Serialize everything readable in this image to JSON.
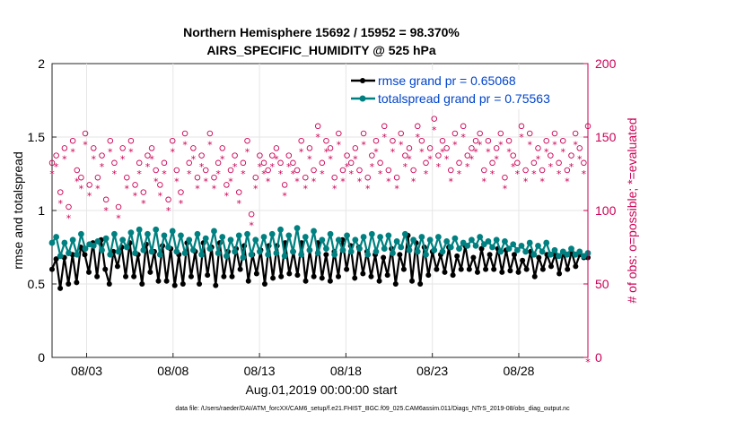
{
  "chart_data": {
    "type": "line",
    "title_line1": "Northern Hemisphere 15692 / 15952 = 98.370%",
    "title_line2": "AIRS_SPECIFIC_HUMIDITY @ 525 hPa",
    "xlabel": "Aug.01,2019 00:00:00 start",
    "ylabel_left": "rmse and totalspread",
    "ylabel_right": "# of obs: o=possible; *=evaluated",
    "ylim_left": [
      0,
      2
    ],
    "ylim_right": [
      0,
      200
    ],
    "xlim_days": [
      0,
      31
    ],
    "left_ticks": [
      "0",
      "0.5",
      "1",
      "1.5",
      "2"
    ],
    "right_ticks": [
      "0",
      "50",
      "100",
      "150",
      "200"
    ],
    "x_tick_labels": [
      "08/03",
      "08/08",
      "08/13",
      "08/18",
      "08/23",
      "08/28"
    ],
    "x_tick_days": [
      2,
      7,
      12,
      17,
      22,
      27
    ],
    "legend": [
      {
        "label": "rmse grand pr = 0.65068",
        "color": "#000000"
      },
      {
        "label": "totalspread grand pr = 0.75563",
        "color": "#008080"
      }
    ],
    "series": [
      {
        "name": "rmse",
        "color": "#000000",
        "values": [
          0.6,
          0.67,
          0.47,
          0.68,
          0.5,
          0.7,
          0.51,
          0.75,
          0.7,
          0.58,
          0.78,
          0.55,
          0.8,
          0.6,
          0.5,
          0.72,
          0.62,
          0.75,
          0.55,
          0.78,
          0.55,
          0.7,
          0.5,
          0.77,
          0.58,
          0.72,
          0.52,
          0.76,
          0.52,
          0.74,
          0.49,
          0.7,
          0.5,
          0.78,
          0.55,
          0.72,
          0.5,
          0.78,
          0.56,
          0.75,
          0.49,
          0.78,
          0.55,
          0.72,
          0.55,
          0.74,
          0.6,
          0.76,
          0.52,
          0.7,
          0.57,
          0.73,
          0.5,
          0.76,
          0.54,
          0.76,
          0.55,
          0.78,
          0.57,
          0.72,
          0.56,
          0.78,
          0.52,
          0.73,
          0.55,
          0.78,
          0.54,
          0.7,
          0.52,
          0.72,
          0.55,
          0.8,
          0.6,
          0.76,
          0.54,
          0.75,
          0.57,
          0.72,
          0.55,
          0.7,
          0.52,
          0.68,
          0.56,
          0.74,
          0.5,
          0.7,
          0.6,
          0.83,
          0.52,
          0.78,
          0.5,
          0.75,
          0.56,
          0.72,
          0.6,
          0.7,
          0.58,
          0.75,
          0.56,
          0.69,
          0.6,
          0.76,
          0.6,
          0.68,
          0.58,
          0.74,
          0.6,
          0.7,
          0.6,
          0.74,
          0.58,
          0.73,
          0.59,
          0.7,
          0.58,
          0.66,
          0.6,
          0.72,
          0.55,
          0.68,
          0.6,
          0.7,
          0.62,
          0.7,
          0.57,
          0.72,
          0.6,
          0.72,
          0.62,
          0.7,
          0.68,
          0.68
        ]
      },
      {
        "name": "totalspread",
        "color": "#008080",
        "values": [
          0.78,
          0.82,
          0.69,
          0.78,
          0.71,
          0.8,
          0.7,
          0.84,
          0.74,
          0.77,
          0.76,
          0.79,
          0.73,
          0.81,
          0.7,
          0.84,
          0.72,
          0.8,
          0.75,
          0.85,
          0.71,
          0.87,
          0.73,
          0.84,
          0.72,
          0.87,
          0.7,
          0.83,
          0.75,
          0.86,
          0.72,
          0.83,
          0.71,
          0.8,
          0.73,
          0.84,
          0.7,
          0.81,
          0.74,
          0.86,
          0.71,
          0.82,
          0.69,
          0.8,
          0.72,
          0.83,
          0.68,
          0.84,
          0.7,
          0.8,
          0.72,
          0.82,
          0.7,
          0.84,
          0.71,
          0.87,
          0.69,
          0.83,
          0.72,
          0.88,
          0.7,
          0.82,
          0.73,
          0.86,
          0.71,
          0.8,
          0.74,
          0.84,
          0.7,
          0.8,
          0.73,
          0.83,
          0.72,
          0.8,
          0.74,
          0.82,
          0.7,
          0.84,
          0.72,
          0.82,
          0.74,
          0.83,
          0.71,
          0.79,
          0.75,
          0.84,
          0.73,
          0.8,
          0.72,
          0.82,
          0.7,
          0.8,
          0.73,
          0.82,
          0.72,
          0.79,
          0.75,
          0.81,
          0.74,
          0.78,
          0.76,
          0.8,
          0.76,
          0.82,
          0.77,
          0.79,
          0.75,
          0.8,
          0.72,
          0.79,
          0.74,
          0.77,
          0.73,
          0.76,
          0.72,
          0.78,
          0.7,
          0.76,
          0.72,
          0.78,
          0.7,
          0.73,
          0.69,
          0.72,
          0.7,
          0.74,
          0.7,
          0.72,
          0.69,
          0.71
        ]
      },
      {
        "name": "possible",
        "color": "#cc0055",
        "marker": "o",
        "values": [
          130,
          135,
          110,
          140,
          100,
          145,
          125,
          120,
          150,
          115,
          140,
          120,
          135,
          105,
          145,
          130,
          100,
          140,
          120,
          145,
          115,
          130,
          110,
          135,
          140,
          125,
          115,
          130,
          105,
          145,
          125,
          110,
          150,
          130,
          140,
          120,
          135,
          125,
          150,
          120,
          130,
          140,
          115,
          125,
          135,
          110,
          130,
          145,
          95,
          120,
          135,
          130,
          125,
          135,
          140,
          130,
          115,
          135,
          130,
          125,
          145,
          120,
          140,
          125,
          155,
          130,
          145,
          140,
          120,
          150,
          125,
          135,
          130,
          140,
          125,
          150,
          120,
          135,
          145,
          130,
          155,
          125,
          145,
          120,
          150,
          135,
          140,
          125,
          155,
          145,
          130,
          140,
          160,
          135,
          145,
          140,
          125,
          150,
          130,
          155,
          135,
          140,
          145,
          150,
          125,
          145,
          130,
          140,
          150,
          120,
          145,
          135,
          130,
          155,
          125,
          150,
          130,
          140,
          125,
          145,
          135,
          150,
          130,
          145,
          125,
          135,
          150,
          140,
          130,
          155
        ]
      },
      {
        "name": "evaluated",
        "color": "#cc0055",
        "marker": "*",
        "values": [
          128,
          133,
          108,
          138,
          98,
          143,
          123,
          118,
          148,
          113,
          138,
          118,
          133,
          103,
          143,
          128,
          98,
          138,
          118,
          143,
          113,
          128,
          108,
          133,
          138,
          123,
          113,
          128,
          103,
          143,
          123,
          108,
          148,
          128,
          138,
          118,
          133,
          123,
          148,
          118,
          128,
          138,
          113,
          123,
          133,
          108,
          128,
          143,
          93,
          118,
          133,
          128,
          123,
          133,
          138,
          128,
          113,
          133,
          128,
          123,
          143,
          118,
          138,
          123,
          153,
          128,
          143,
          138,
          118,
          148,
          123,
          133,
          128,
          138,
          123,
          148,
          118,
          133,
          143,
          128,
          153,
          123,
          143,
          118,
          148,
          133,
          138,
          123,
          153,
          143,
          128,
          138,
          158,
          133,
          143,
          138,
          123,
          148,
          128,
          153,
          133,
          138,
          143,
          148,
          123,
          143,
          128,
          138,
          148,
          118,
          143,
          133,
          128,
          153,
          123,
          148,
          128,
          138,
          123,
          143,
          133,
          148,
          128,
          143,
          123,
          133,
          148,
          138,
          128,
          0
        ]
      }
    ]
  },
  "footer": "data file: /Users/raeder/DAI/ATM_forcXX/CAM6_setup/f.e21.FHIST_BGC.f09_025.CAM6assim.011/Diags_NTrS_2019-08/obs_diag_output.nc"
}
